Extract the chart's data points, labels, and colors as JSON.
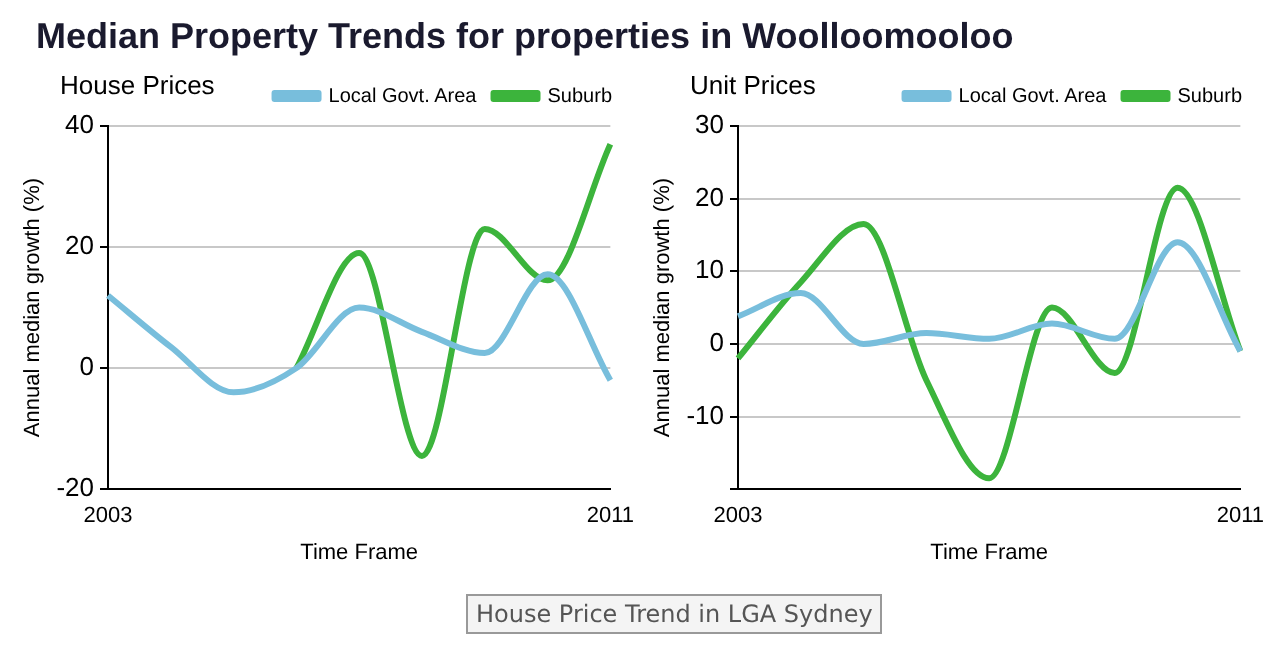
{
  "chart_data": [
    {
      "type": "line",
      "title": "Median Property Trends for properties in Woolloomooloo",
      "subtitle": "House Prices",
      "xlabel": "Time Frame",
      "ylabel": "Annual median growth (%)",
      "categories": [
        "2003",
        null,
        null,
        null,
        null,
        null,
        null,
        null,
        "2011"
      ],
      "ylim": [
        -20,
        40
      ],
      "yticks": [
        -20,
        0,
        20,
        40
      ],
      "grid": "y",
      "legend": "top right",
      "marker": "none",
      "line_style": "solid",
      "annotations": [
        "House Price Trend in LGA Sydney"
      ],
      "series": [
        {
          "name": "Local Govt. Area",
          "color": "#78bedc",
          "values": [
            12,
            3.5,
            -4,
            0,
            10,
            6,
            2.5,
            15.5,
            -2
          ]
        },
        {
          "name": "Suburb",
          "color": "#3cb43c",
          "values": [
            null,
            null,
            null,
            0,
            19,
            -14.5,
            23,
            14.5,
            37
          ]
        }
      ]
    },
    {
      "type": "line",
      "title": "Unit Prices",
      "xlabel": "Time Frame",
      "ylabel": "Annual median growth (%)",
      "categories": [
        "2003",
        null,
        null,
        null,
        null,
        null,
        null,
        null,
        "2011"
      ],
      "ylim": [
        -20,
        30
      ],
      "yticks": [
        {
          "value": -20,
          "label": null
        },
        -10,
        0,
        10,
        20,
        30
      ],
      "grid": "y",
      "legend": "top right",
      "marker": "none",
      "line_style": "solid",
      "series": [
        {
          "name": "Local Govt. Area",
          "color": "#78bedc",
          "values": [
            3.8,
            7,
            0,
            1.5,
            0.7,
            2.8,
            0.7,
            14,
            -1
          ]
        },
        {
          "name": "Suburb",
          "color": "#3cb43c",
          "values": [
            -2,
            8.5,
            16.5,
            -5,
            -18.5,
            5,
            -4,
            21.5,
            -1
          ]
        }
      ]
    }
  ]
}
